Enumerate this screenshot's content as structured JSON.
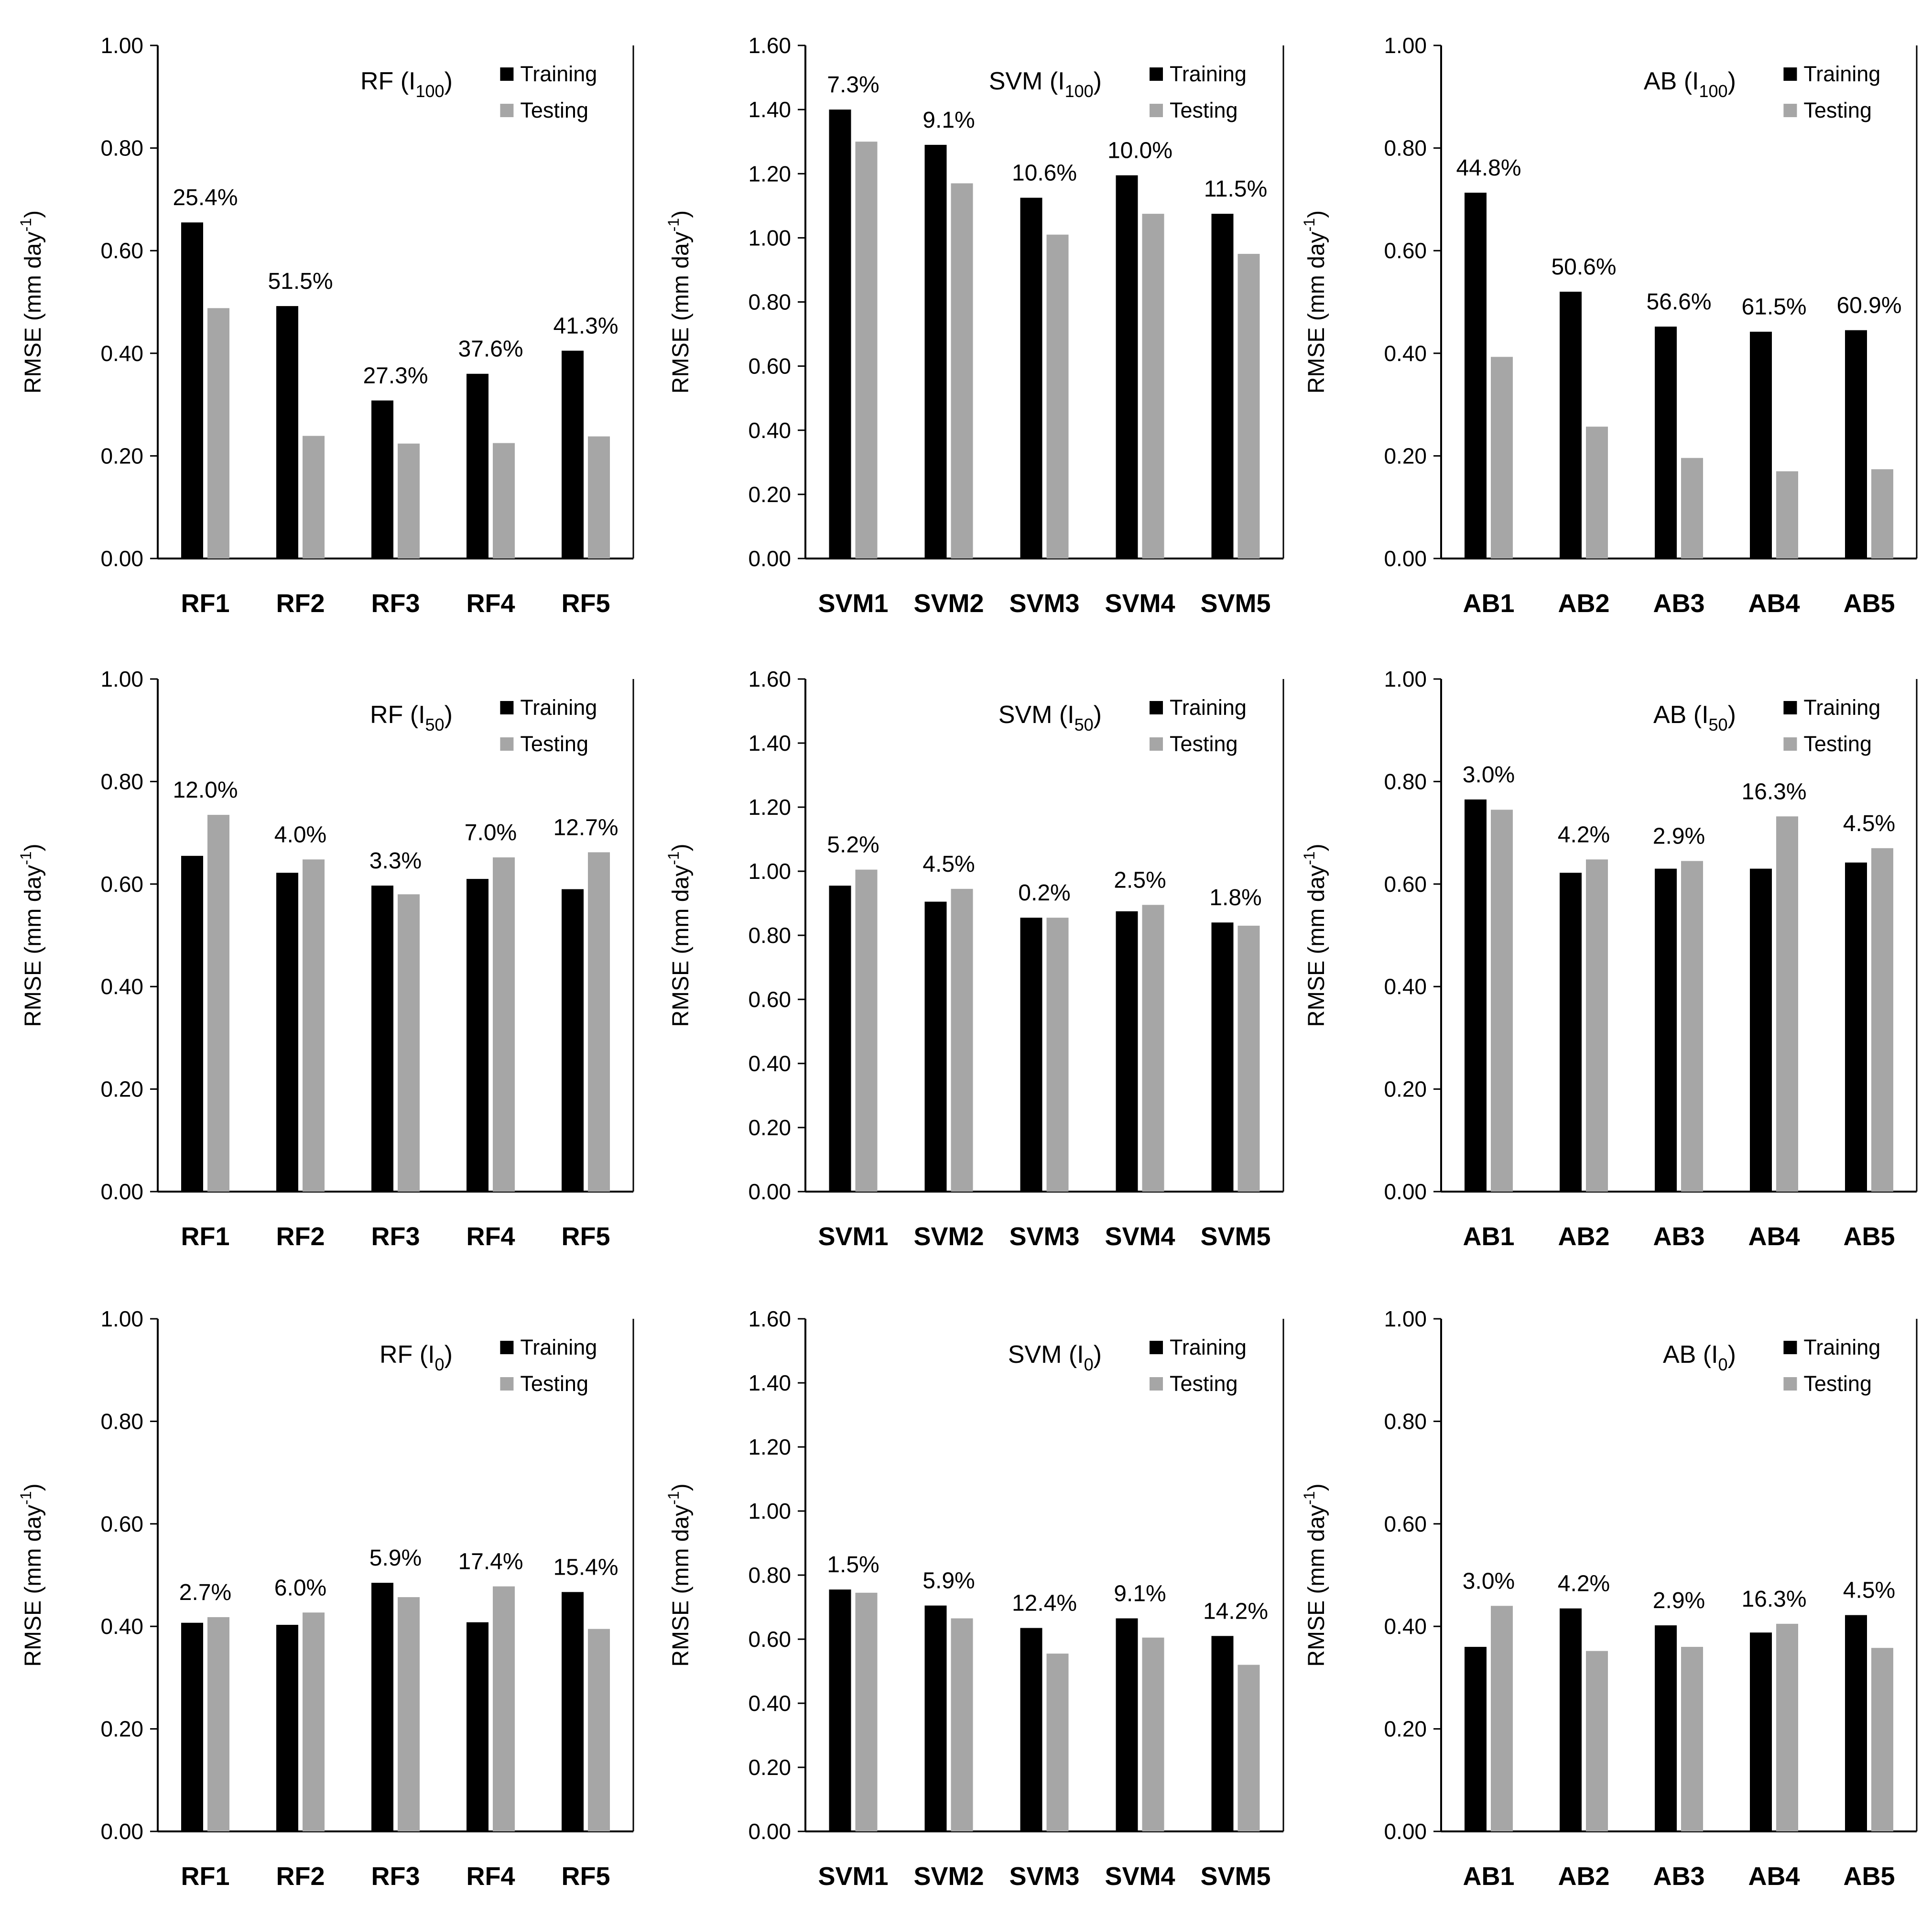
{
  "chart_data": [
    {
      "type": "bar",
      "title": "RF (I",
      "title_sub": "100",
      "title_end": ")",
      "ylabel": "RMSE (mm day",
      "ylabel_sup": "-1",
      "ylabel_end": ")",
      "ylim": [
        0,
        1.0
      ],
      "yticks": [
        "0.00",
        "0.20",
        "0.40",
        "0.60",
        "0.80",
        "1.00"
      ],
      "categories": [
        "RF1",
        "RF2",
        "RF3",
        "RF4",
        "RF5"
      ],
      "series": [
        {
          "name": "Training",
          "values": [
            0.655,
            0.492,
            0.308,
            0.36,
            0.405
          ]
        },
        {
          "name": "Testing",
          "values": [
            0.488,
            0.239,
            0.224,
            0.225,
            0.238
          ]
        }
      ],
      "labels": [
        "25.4%",
        "51.5%",
        "27.3%",
        "37.6%",
        "41.3%"
      ],
      "legend": "top-right"
    },
    {
      "type": "bar",
      "title": "SVM (I",
      "title_sub": "100",
      "title_end": ")",
      "ylabel": "RMSE (mm day",
      "ylabel_sup": "-1",
      "ylabel_end": ")",
      "ylim": [
        0,
        1.6
      ],
      "yticks": [
        "0.00",
        "0.20",
        "0.40",
        "0.60",
        "0.80",
        "1.00",
        "1.20",
        "1.40",
        "1.60"
      ],
      "categories": [
        "SVM1",
        "SVM2",
        "SVM3",
        "SVM4",
        "SVM5"
      ],
      "series": [
        {
          "name": "Training",
          "values": [
            1.4,
            1.29,
            1.125,
            1.195,
            1.075
          ]
        },
        {
          "name": "Testing",
          "values": [
            1.3,
            1.17,
            1.01,
            1.075,
            0.95
          ]
        }
      ],
      "labels": [
        "7.3%",
        "9.1%",
        "10.6%",
        "10.0%",
        "11.5%"
      ],
      "legend": "top-right"
    },
    {
      "type": "bar",
      "title": "AB (I",
      "title_sub": "100",
      "title_end": ")",
      "ylabel": "RMSE (mm day",
      "ylabel_sup": "-1",
      "ylabel_end": ")",
      "ylim": [
        0,
        1.0
      ],
      "yticks": [
        "0.00",
        "0.20",
        "0.40",
        "0.60",
        "0.80",
        "1.00"
      ],
      "categories": [
        "AB1",
        "AB2",
        "AB3",
        "AB4",
        "AB5"
      ],
      "series": [
        {
          "name": "Training",
          "values": [
            0.713,
            0.52,
            0.452,
            0.442,
            0.445
          ]
        },
        {
          "name": "Testing",
          "values": [
            0.393,
            0.257,
            0.196,
            0.17,
            0.174
          ]
        }
      ],
      "labels": [
        "44.8%",
        "50.6%",
        "56.6%",
        "61.5%",
        "60.9%"
      ],
      "legend": "top-right"
    },
    {
      "type": "bar",
      "title": "RF (I",
      "title_sub": "50",
      "title_end": ")",
      "ylabel": "RMSE (mm day",
      "ylabel_sup": "-1",
      "ylabel_end": ")",
      "ylim": [
        0,
        1.0
      ],
      "yticks": [
        "0.00",
        "0.20",
        "0.40",
        "0.60",
        "0.80",
        "1.00"
      ],
      "categories": [
        "RF1",
        "RF2",
        "RF3",
        "RF4",
        "RF5"
      ],
      "series": [
        {
          "name": "Training",
          "values": [
            0.655,
            0.622,
            0.597,
            0.61,
            0.59
          ]
        },
        {
          "name": "Testing",
          "values": [
            0.735,
            0.648,
            0.58,
            0.652,
            0.662
          ]
        }
      ],
      "labels": [
        "12.0%",
        "4.0%",
        "3.3%",
        "7.0%",
        "12.7%"
      ],
      "legend": "top-right"
    },
    {
      "type": "bar",
      "title": "SVM (I",
      "title_sub": "50",
      "title_end": ")",
      "ylabel": "RMSE (mm day",
      "ylabel_sup": "-1",
      "ylabel_end": ")",
      "ylim": [
        0,
        1.6
      ],
      "yticks": [
        "0.00",
        "0.20",
        "0.40",
        "0.60",
        "0.80",
        "1.00",
        "1.20",
        "1.40",
        "1.60"
      ],
      "categories": [
        "SVM1",
        "SVM2",
        "SVM3",
        "SVM4",
        "SVM5"
      ],
      "series": [
        {
          "name": "Training",
          "values": [
            0.955,
            0.905,
            0.855,
            0.875,
            0.84
          ]
        },
        {
          "name": "Testing",
          "values": [
            1.005,
            0.945,
            0.855,
            0.895,
            0.83
          ]
        }
      ],
      "labels": [
        "5.2%",
        "4.5%",
        "0.2%",
        "2.5%",
        "1.8%"
      ],
      "legend": "top-right"
    },
    {
      "type": "bar",
      "title": "AB (I",
      "title_sub": "50",
      "title_end": ")",
      "ylabel": "RMSE (mm day",
      "ylabel_sup": "-1",
      "ylabel_end": ")",
      "ylim": [
        0,
        1.0
      ],
      "yticks": [
        "0.00",
        "0.20",
        "0.40",
        "0.60",
        "0.80",
        "1.00"
      ],
      "categories": [
        "AB1",
        "AB2",
        "AB3",
        "AB4",
        "AB5"
      ],
      "series": [
        {
          "name": "Training",
          "values": [
            0.765,
            0.622,
            0.63,
            0.63,
            0.642
          ]
        },
        {
          "name": "Testing",
          "values": [
            0.745,
            0.648,
            0.645,
            0.732,
            0.67
          ]
        }
      ],
      "labels": [
        "3.0%",
        "4.2%",
        "2.9%",
        "16.3%",
        "4.5%"
      ],
      "legend": "top-right"
    },
    {
      "type": "bar",
      "title": "RF (I",
      "title_sub": "0",
      "title_end": ")",
      "ylabel": "RMSE (mm day",
      "ylabel_sup": "-1",
      "ylabel_end": ")",
      "ylim": [
        0,
        1.0
      ],
      "yticks": [
        "0.00",
        "0.20",
        "0.40",
        "0.60",
        "0.80",
        "1.00"
      ],
      "categories": [
        "RF1",
        "RF2",
        "RF3",
        "RF4",
        "RF5"
      ],
      "series": [
        {
          "name": "Training",
          "values": [
            0.407,
            0.403,
            0.485,
            0.408,
            0.467
          ]
        },
        {
          "name": "Testing",
          "values": [
            0.418,
            0.427,
            0.457,
            0.478,
            0.395
          ]
        }
      ],
      "labels": [
        "2.7%",
        "6.0%",
        "5.9%",
        "17.4%",
        "15.4%"
      ],
      "legend": "top-right"
    },
    {
      "type": "bar",
      "title": "SVM (I",
      "title_sub": "0",
      "title_end": ")",
      "ylabel": "RMSE (mm day",
      "ylabel_sup": "-1",
      "ylabel_end": ")",
      "ylim": [
        0,
        1.6
      ],
      "yticks": [
        "0.00",
        "0.20",
        "0.40",
        "0.60",
        "0.80",
        "1.00",
        "1.20",
        "1.40",
        "1.60"
      ],
      "categories": [
        "SVM1",
        "SVM2",
        "SVM3",
        "SVM4",
        "SVM5"
      ],
      "series": [
        {
          "name": "Training",
          "values": [
            0.755,
            0.705,
            0.635,
            0.665,
            0.61
          ]
        },
        {
          "name": "Testing",
          "values": [
            0.745,
            0.665,
            0.555,
            0.605,
            0.52
          ]
        }
      ],
      "labels": [
        "1.5%",
        "5.9%",
        "12.4%",
        "9.1%",
        "14.2%"
      ],
      "legend": "top-right"
    },
    {
      "type": "bar",
      "title": "AB (I",
      "title_sub": "0",
      "title_end": ")",
      "ylabel": "RMSE (mm day",
      "ylabel_sup": "-1",
      "ylabel_end": ")",
      "ylim": [
        0,
        1.0
      ],
      "yticks": [
        "0.00",
        "0.20",
        "0.40",
        "0.60",
        "0.80",
        "1.00"
      ],
      "categories": [
        "AB1",
        "AB2",
        "AB3",
        "AB4",
        "AB5"
      ],
      "series": [
        {
          "name": "Training",
          "values": [
            0.36,
            0.435,
            0.402,
            0.388,
            0.422
          ]
        },
        {
          "name": "Testing",
          "values": [
            0.44,
            0.352,
            0.36,
            0.405,
            0.358
          ]
        }
      ],
      "labels": [
        "3.0%",
        "4.2%",
        "2.9%",
        "16.3%",
        "4.5%"
      ],
      "legend": "top-right"
    }
  ],
  "colors": {
    "training": "#000000",
    "testing": "#a6a6a6",
    "axis": "#000000"
  }
}
